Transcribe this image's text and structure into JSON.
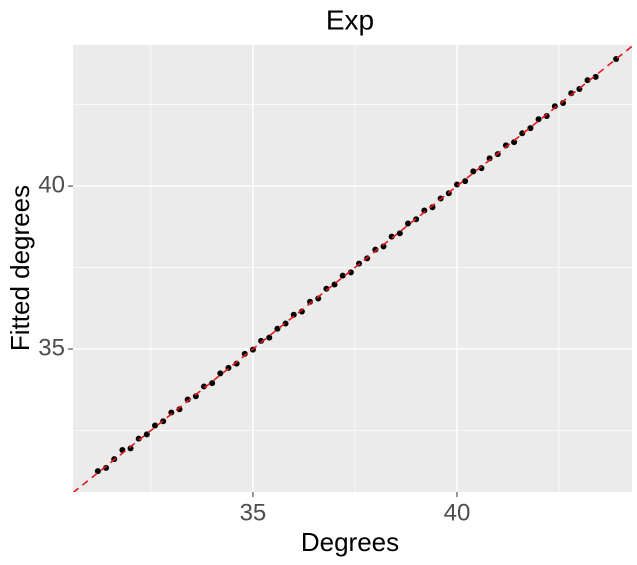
{
  "chart_data": {
    "type": "scatter",
    "title": "Exp",
    "x_label": "Degrees",
    "y_label": "Fitted degrees",
    "x": [
      31.2,
      31.4,
      31.6,
      31.8,
      32.0,
      32.2,
      32.4,
      32.6,
      32.8,
      33.0,
      33.2,
      33.4,
      33.6,
      33.8,
      34.0,
      34.2,
      34.4,
      34.6,
      34.8,
      35.0,
      35.2,
      35.4,
      35.6,
      35.8,
      36.0,
      36.2,
      36.4,
      36.6,
      36.8,
      37.0,
      37.2,
      37.4,
      37.6,
      37.8,
      38.0,
      38.2,
      38.4,
      38.6,
      38.8,
      39.0,
      39.2,
      39.4,
      39.6,
      39.8,
      40.0,
      40.2,
      40.4,
      40.6,
      40.8,
      41.0,
      41.2,
      41.4,
      41.6,
      41.8,
      42.0,
      42.2,
      42.4,
      42.6,
      42.8,
      43.0,
      43.2,
      43.4,
      43.9
    ],
    "values": [
      31.25,
      31.35,
      31.62,
      31.9,
      31.95,
      32.25,
      32.38,
      32.65,
      32.78,
      33.05,
      33.15,
      33.45,
      33.55,
      33.85,
      33.95,
      34.25,
      34.42,
      34.55,
      34.85,
      34.98,
      35.25,
      35.35,
      35.62,
      35.78,
      36.05,
      36.15,
      36.45,
      36.55,
      36.85,
      36.98,
      37.25,
      37.35,
      37.62,
      37.78,
      38.05,
      38.15,
      38.45,
      38.55,
      38.85,
      38.98,
      39.25,
      39.35,
      39.62,
      39.78,
      40.05,
      40.15,
      40.45,
      40.55,
      40.85,
      40.98,
      41.25,
      41.35,
      41.62,
      41.78,
      42.05,
      42.15,
      42.45,
      42.55,
      42.85,
      42.98,
      43.25,
      43.35,
      43.9
    ],
    "color": "#000000",
    "reference_line": {
      "slope": 1,
      "intercept": 0,
      "color": "#e41a1c"
    },
    "xlim": [
      30.59,
      44.29
    ],
    "ylim": [
      30.61,
      44.33
    ],
    "xticks": [
      35,
      40
    ],
    "yticks": [
      35,
      40
    ],
    "x_minor_ticks": [
      32.5,
      37.5,
      42.5
    ],
    "y_minor_ticks": [
      32.5,
      37.5,
      42.5
    ],
    "grid": true
  }
}
